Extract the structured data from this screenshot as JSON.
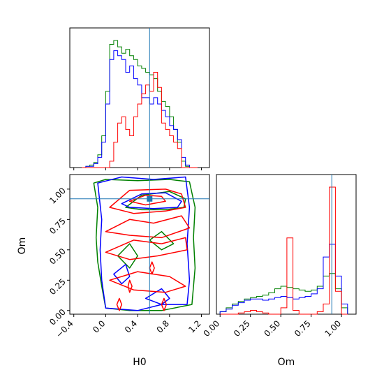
{
  "chart_data": {
    "type": "corner",
    "parameters": [
      "H0",
      "Om"
    ],
    "truths": {
      "H0": 0.55,
      "Om": 0.92
    },
    "truth_color": "#1f77b4",
    "series": [
      {
        "color": "#008000"
      },
      {
        "color": "#0000ff"
      },
      {
        "color": "#ff0000"
      }
    ],
    "h0_ticks": [
      "−0.4",
      "0.0",
      "0.4",
      "0.8",
      "1.2"
    ],
    "om_ticks": [
      "0.00",
      "0.25",
      "0.50",
      "0.75",
      "1.00"
    ],
    "histograms": {
      "H0": {
        "bin_edges": [
          -0.3,
          -0.25,
          -0.2,
          -0.15,
          -0.1,
          -0.05,
          0.0,
          0.05,
          0.1,
          0.15,
          0.2,
          0.25,
          0.3,
          0.35,
          0.4,
          0.45,
          0.5,
          0.55,
          0.6,
          0.65,
          0.7,
          0.75,
          0.8,
          0.85,
          0.9,
          0.95,
          1.0,
          1.05,
          1.1,
          1.15
        ],
        "green": [
          0,
          0.01,
          0.02,
          0.04,
          0.1,
          0.25,
          0.6,
          0.97,
          1.0,
          0.95,
          0.9,
          0.93,
          0.88,
          0.85,
          0.8,
          0.78,
          0.75,
          0.73,
          0.7,
          0.6,
          0.52,
          0.48,
          0.4,
          0.3,
          0.2,
          0.05,
          0.01,
          0,
          0
        ],
        "blue": [
          0,
          0.01,
          0.01,
          0.03,
          0.08,
          0.2,
          0.5,
          0.85,
          0.92,
          0.88,
          0.85,
          0.75,
          0.8,
          0.7,
          0.65,
          0.55,
          0.55,
          0.5,
          0.55,
          0.5,
          0.45,
          0.4,
          0.33,
          0.3,
          0.22,
          0.08,
          0.02,
          0,
          0
        ],
        "red": [
          0,
          0,
          0,
          0,
          0,
          0,
          0,
          0.05,
          0.2,
          0.35,
          0.4,
          0.3,
          0.25,
          0.4,
          0.5,
          0.58,
          0.65,
          0.6,
          0.75,
          0.63,
          0.35,
          0.3,
          0.25,
          0.2,
          0.15,
          0,
          0,
          0,
          0
        ]
      },
      "Om": {
        "bin_edges": [
          0.0,
          0.05,
          0.1,
          0.15,
          0.2,
          0.25,
          0.3,
          0.35,
          0.4,
          0.45,
          0.5,
          0.55,
          0.6,
          0.65,
          0.7,
          0.75,
          0.8,
          0.85,
          0.9,
          0.95,
          1.0,
          1.05
        ],
        "green": [
          0.02,
          0.05,
          0.08,
          0.1,
          0.12,
          0.13,
          0.14,
          0.15,
          0.17,
          0.2,
          0.22,
          0.21,
          0.2,
          0.19,
          0.18,
          0.19,
          0.22,
          0.3,
          0.32,
          0.2,
          0.05
        ],
        "blue": [
          0.02,
          0.04,
          0.07,
          0.09,
          0.11,
          0.12,
          0.12,
          0.11,
          0.12,
          0.13,
          0.14,
          0.13,
          0.12,
          0.13,
          0.14,
          0.16,
          0.2,
          0.45,
          0.55,
          0.3,
          0.08
        ],
        "red": [
          0,
          0,
          0,
          0.01,
          0.02,
          0.03,
          0.02,
          0.01,
          0,
          0,
          0.05,
          0.6,
          0.03,
          0,
          0,
          0,
          0.02,
          0.08,
          1.0,
          0.18,
          0
        ]
      }
    },
    "contours": {
      "green": [
        [
          [
            0.0,
            0.02
          ],
          [
            -0.05,
            0.2
          ],
          [
            -0.1,
            0.4
          ],
          [
            -0.12,
            0.6
          ],
          [
            -0.1,
            0.85
          ],
          [
            -0.15,
            1.05
          ],
          [
            0.0,
            1.08
          ],
          [
            0.4,
            1.07
          ],
          [
            0.8,
            1.08
          ],
          [
            1.05,
            1.06
          ],
          [
            1.12,
            0.85
          ],
          [
            1.1,
            0.6
          ],
          [
            1.12,
            0.35
          ],
          [
            1.08,
            0.05
          ],
          [
            0.7,
            0.0
          ],
          [
            0.3,
            0.0
          ],
          [
            0.0,
            0.02
          ]
        ],
        [
          [
            0.25,
            0.85
          ],
          [
            0.45,
            0.95
          ],
          [
            0.8,
            0.98
          ],
          [
            1.0,
            0.92
          ],
          [
            0.98,
            0.85
          ],
          [
            0.75,
            0.83
          ],
          [
            0.45,
            0.83
          ],
          [
            0.25,
            0.85
          ]
        ],
        [
          [
            0.15,
            0.45
          ],
          [
            0.3,
            0.55
          ],
          [
            0.4,
            0.45
          ],
          [
            0.3,
            0.35
          ],
          [
            0.15,
            0.45
          ]
        ],
        [
          [
            0.55,
            0.58
          ],
          [
            0.7,
            0.65
          ],
          [
            0.85,
            0.55
          ],
          [
            0.7,
            0.5
          ],
          [
            0.55,
            0.58
          ]
        ]
      ],
      "blue": [
        [
          [
            0.0,
            0.02
          ],
          [
            -0.05,
            0.25
          ],
          [
            -0.07,
            0.5
          ],
          [
            -0.05,
            0.75
          ],
          [
            -0.1,
            1.05
          ],
          [
            0.2,
            1.1
          ],
          [
            0.6,
            1.08
          ],
          [
            1.0,
            1.1
          ],
          [
            1.05,
            0.85
          ],
          [
            1.02,
            0.55
          ],
          [
            1.05,
            0.25
          ],
          [
            1.02,
            0.05
          ],
          [
            0.7,
            0.05
          ],
          [
            0.4,
            0.0
          ],
          [
            0.0,
            0.02
          ]
        ],
        [
          [
            0.2,
            0.88
          ],
          [
            0.45,
            0.96
          ],
          [
            0.75,
            0.97
          ],
          [
            0.95,
            0.9
          ],
          [
            0.9,
            0.85
          ],
          [
            0.6,
            0.84
          ],
          [
            0.3,
            0.85
          ],
          [
            0.2,
            0.88
          ]
        ],
        [
          [
            0.5,
            0.1
          ],
          [
            0.7,
            0.18
          ],
          [
            0.8,
            0.1
          ],
          [
            0.7,
            0.05
          ],
          [
            0.5,
            0.1
          ]
        ],
        [
          [
            0.1,
            0.3
          ],
          [
            0.25,
            0.38
          ],
          [
            0.3,
            0.28
          ],
          [
            0.2,
            0.22
          ],
          [
            0.1,
            0.3
          ]
        ]
      ],
      "red": [
        [
          [
            0.05,
            0.85
          ],
          [
            0.3,
            0.99
          ],
          [
            0.75,
            1.0
          ],
          [
            0.95,
            0.96
          ],
          [
            1.0,
            0.85
          ],
          [
            0.75,
            0.82
          ],
          [
            0.35,
            0.8
          ],
          [
            0.05,
            0.85
          ]
        ],
        [
          [
            0.3,
            0.9
          ],
          [
            0.5,
            0.95
          ],
          [
            0.7,
            0.94
          ],
          [
            0.75,
            0.9
          ],
          [
            0.5,
            0.87
          ],
          [
            0.3,
            0.9
          ]
        ],
        [
          [
            0.0,
            0.65
          ],
          [
            0.3,
            0.75
          ],
          [
            0.6,
            0.72
          ],
          [
            0.95,
            0.78
          ],
          [
            1.05,
            0.68
          ],
          [
            0.7,
            0.6
          ],
          [
            0.3,
            0.62
          ],
          [
            0.0,
            0.65
          ]
        ],
        [
          [
            0.0,
            0.48
          ],
          [
            0.35,
            0.58
          ],
          [
            0.7,
            0.55
          ],
          [
            1.0,
            0.6
          ],
          [
            1.02,
            0.5
          ],
          [
            0.65,
            0.45
          ],
          [
            0.3,
            0.42
          ],
          [
            0.0,
            0.48
          ]
        ],
        [
          [
            0.05,
            0.25
          ],
          [
            0.4,
            0.32
          ],
          [
            0.8,
            0.28
          ],
          [
            1.0,
            0.2
          ],
          [
            0.75,
            0.15
          ],
          [
            0.35,
            0.17
          ],
          [
            0.05,
            0.25
          ]
        ],
        [
          [
            0.14,
            0.05
          ],
          [
            0.17,
            0.1
          ],
          [
            0.2,
            0.05
          ],
          [
            0.17,
            0.0
          ],
          [
            0.14,
            0.05
          ]
        ],
        [
          [
            0.28,
            0.2
          ],
          [
            0.3,
            0.25
          ],
          [
            0.33,
            0.2
          ],
          [
            0.3,
            0.15
          ],
          [
            0.28,
            0.2
          ]
        ],
        [
          [
            0.7,
            0.05
          ],
          [
            0.73,
            0.1
          ],
          [
            0.76,
            0.05
          ],
          [
            0.73,
            0.0
          ],
          [
            0.7,
            0.05
          ]
        ],
        [
          [
            0.55,
            0.35
          ],
          [
            0.58,
            0.4
          ],
          [
            0.61,
            0.35
          ],
          [
            0.58,
            0.3
          ],
          [
            0.55,
            0.35
          ]
        ]
      ]
    },
    "xlabel": "H0",
    "ylabel": "Om",
    "ranges": {
      "H0": [
        -0.45,
        1.3
      ],
      "Om": [
        -0.03,
        1.12
      ]
    }
  }
}
